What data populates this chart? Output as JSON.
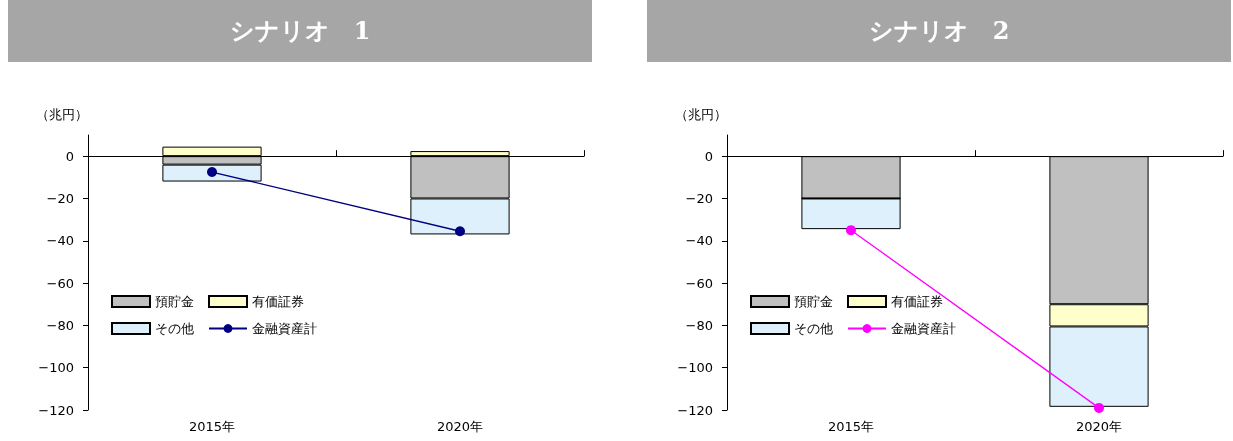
{
  "chart_data": [
    {
      "type": "bar",
      "title": "シナリオ　1",
      "ylabel": "（兆円）",
      "categories": [
        "2015年",
        "2020年"
      ],
      "stacked": true,
      "legend": "bottom left",
      "marker": "circle",
      "ylim": [
        -120,
        10
      ],
      "yticks": [
        0,
        {
          "value": -20,
          "label": "−20"
        },
        {
          "value": -40,
          "label": "−40"
        },
        {
          "value": -60,
          "label": "−60"
        },
        {
          "value": -80,
          "label": "−80"
        },
        {
          "value": -100,
          "label": "−100"
        },
        {
          "value": -120,
          "label": "−120"
        }
      ],
      "series": [
        {
          "name": "預貯金",
          "color": "#c0c0c0",
          "values": [
            -4,
            -20
          ]
        },
        {
          "name": "有価証券",
          "color": "#ffffcc",
          "values": [
            4.5,
            2.4
          ]
        },
        {
          "name": "その他",
          "color": "#ddf0fc",
          "values": [
            -8,
            -17
          ]
        },
        {
          "name": "金融資産計",
          "type": "line",
          "color": "#000080",
          "values": [
            -7.5,
            -35.5
          ]
        }
      ]
    },
    {
      "type": "bar",
      "title": "シナリオ　2",
      "ylabel": "（兆円）",
      "categories": [
        "2015年",
        "2020年"
      ],
      "stacked": true,
      "legend": "bottom left",
      "marker": "circle",
      "ylim": [
        -120,
        10
      ],
      "yticks": [
        0,
        {
          "value": -20,
          "label": "−20"
        },
        {
          "value": -40,
          "label": "−40"
        },
        {
          "value": -60,
          "label": "−60"
        },
        {
          "value": -80,
          "label": "−80"
        },
        {
          "value": -100,
          "label": "−100"
        },
        {
          "value": -120,
          "label": "−120"
        }
      ],
      "series": [
        {
          "name": "預貯金",
          "color": "#c0c0c0",
          "values": [
            -20,
            -70
          ]
        },
        {
          "name": "有価証券",
          "color": "#ffffcc",
          "values": [
            0,
            -10.5
          ]
        },
        {
          "name": "その他",
          "color": "#ddf0fc",
          "values": [
            -14.5,
            -38
          ]
        },
        {
          "name": "金融資産計",
          "type": "line",
          "color": "#ff00ff",
          "values": [
            -35,
            -119
          ]
        }
      ]
    }
  ]
}
